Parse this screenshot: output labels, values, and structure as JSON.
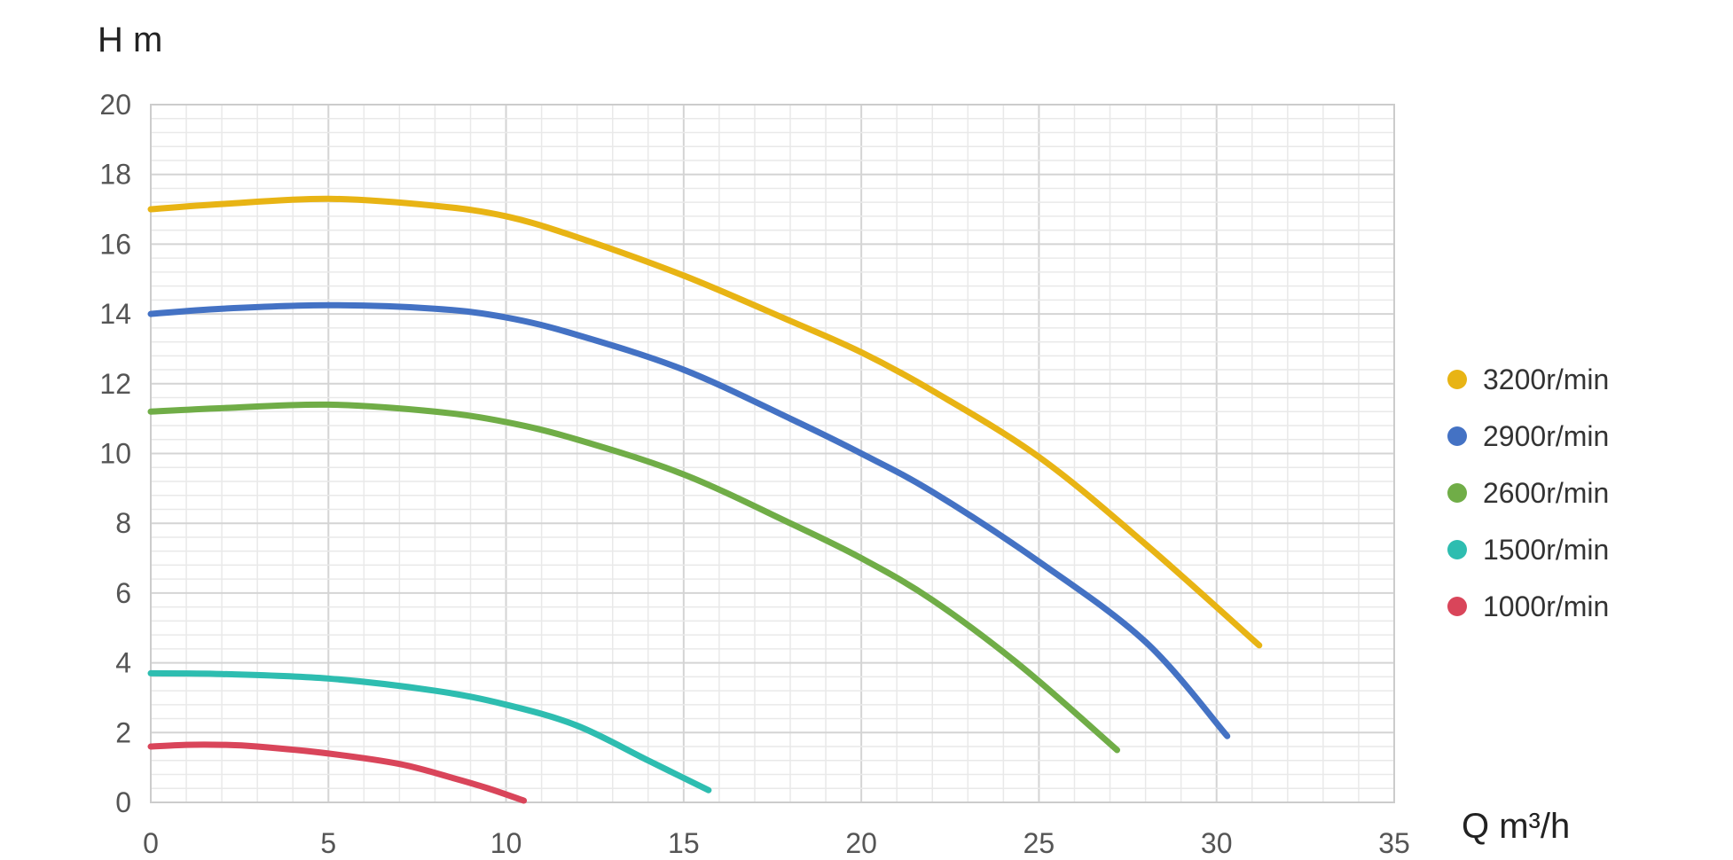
{
  "chart_data": {
    "type": "line",
    "ylabel": "H m",
    "xlabel": "Q m³/h",
    "xlim": [
      0,
      35
    ],
    "ylim": [
      0,
      20
    ],
    "x_ticks": [
      "0",
      "5",
      "10",
      "15",
      "20",
      "25",
      "30",
      "35"
    ],
    "y_ticks": [
      "0",
      "2",
      "4",
      "6",
      "8",
      "10",
      "12",
      "14",
      "16",
      "18",
      "20"
    ],
    "grid": {
      "major": true,
      "minor": true,
      "x_minor_step": 1,
      "y_minor_step": 0.4
    },
    "legend": "right",
    "series": [
      {
        "name": "3200r/min",
        "color": "#E8B414",
        "points": [
          [
            0,
            17.0
          ],
          [
            2,
            17.15
          ],
          [
            5,
            17.3
          ],
          [
            8,
            17.1
          ],
          [
            10,
            16.8
          ],
          [
            12,
            16.2
          ],
          [
            15,
            15.1
          ],
          [
            18,
            13.8
          ],
          [
            20,
            12.9
          ],
          [
            22,
            11.8
          ],
          [
            25,
            9.9
          ],
          [
            28,
            7.4
          ],
          [
            31.2,
            4.5
          ]
        ]
      },
      {
        "name": "2900r/min",
        "color": "#4472C4",
        "points": [
          [
            0,
            14.0
          ],
          [
            2,
            14.15
          ],
          [
            5,
            14.25
          ],
          [
            8,
            14.15
          ],
          [
            10,
            13.9
          ],
          [
            12,
            13.4
          ],
          [
            15,
            12.4
          ],
          [
            18,
            11.0
          ],
          [
            20,
            10.0
          ],
          [
            22,
            8.9
          ],
          [
            25,
            6.9
          ],
          [
            28,
            4.6
          ],
          [
            30.3,
            1.9
          ]
        ]
      },
      {
        "name": "2600r/min",
        "color": "#70AD47",
        "points": [
          [
            0,
            11.2
          ],
          [
            2,
            11.3
          ],
          [
            5,
            11.4
          ],
          [
            8,
            11.2
          ],
          [
            10,
            10.9
          ],
          [
            12,
            10.4
          ],
          [
            15,
            9.4
          ],
          [
            18,
            8.0
          ],
          [
            20,
            7.0
          ],
          [
            22,
            5.8
          ],
          [
            24.5,
            3.9
          ],
          [
            27.2,
            1.5
          ]
        ]
      },
      {
        "name": "1500r/min",
        "color": "#2EBDB0",
        "points": [
          [
            0,
            3.7
          ],
          [
            2,
            3.68
          ],
          [
            5,
            3.55
          ],
          [
            8,
            3.2
          ],
          [
            10,
            2.8
          ],
          [
            12,
            2.2
          ],
          [
            14,
            1.2
          ],
          [
            15.7,
            0.35
          ]
        ]
      },
      {
        "name": "1000r/min",
        "color": "#D9455A",
        "points": [
          [
            0,
            1.6
          ],
          [
            1,
            1.65
          ],
          [
            2,
            1.65
          ],
          [
            3,
            1.6
          ],
          [
            5,
            1.4
          ],
          [
            7,
            1.1
          ],
          [
            8.5,
            0.7
          ],
          [
            9.5,
            0.4
          ],
          [
            10.5,
            0.05
          ]
        ]
      }
    ]
  }
}
